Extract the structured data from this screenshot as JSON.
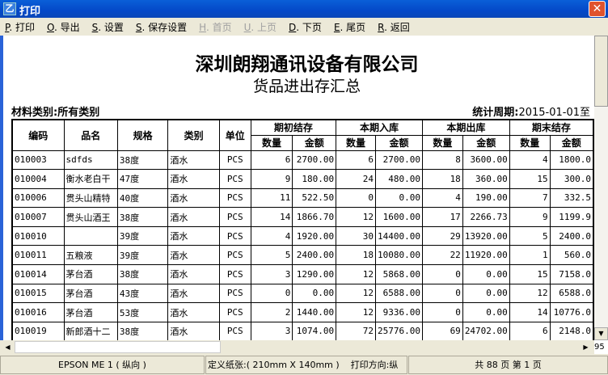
{
  "window": {
    "title": "打印",
    "close": "✕"
  },
  "menu": [
    {
      "key": "P",
      "label": ". 打印",
      "enabled": true
    },
    {
      "key": "O",
      "label": ". 导出",
      "enabled": true
    },
    {
      "key": "S",
      "label": ". 设置",
      "enabled": true
    },
    {
      "key": "S",
      "label": ". 保存设置",
      "enabled": true
    },
    {
      "key": "H",
      "label": ". 首页",
      "enabled": false
    },
    {
      "key": "U",
      "label": ". 上页",
      "enabled": false
    },
    {
      "key": "D",
      "label": ". 下页",
      "enabled": true
    },
    {
      "key": "E",
      "label": ". 尾页",
      "enabled": true
    },
    {
      "key": "R",
      "label": ". 返回",
      "enabled": true
    }
  ],
  "report": {
    "company": "深圳朗翔通讯设备有限公司",
    "title": "货品进出存汇总",
    "category": "材料类别:所有类别",
    "period_label": "统计周期:",
    "period_value": "2015-01-01至",
    "headers": {
      "code": "编码",
      "name": "品名",
      "spec": "规格",
      "type": "类别",
      "unit": "单位",
      "groups": [
        "期初结存",
        "本期入库",
        "本期出库",
        "期末结存"
      ],
      "qty": "数量",
      "amount": "金额"
    },
    "rows": [
      [
        "010003",
        "sdfds",
        "38度",
        "酒水",
        "PCS",
        "6",
        "2700.00",
        "6",
        "2700.00",
        "8",
        "3600.00",
        "4",
        "1800.0"
      ],
      [
        "010004",
        "衡水老白干",
        "47度",
        "酒水",
        "PCS",
        "9",
        "180.00",
        "24",
        "480.00",
        "18",
        "360.00",
        "15",
        "300.0"
      ],
      [
        "010006",
        "贯头山精特",
        "40度",
        "酒水",
        "PCS",
        "11",
        "522.50",
        "0",
        "0.00",
        "4",
        "190.00",
        "7",
        "332.5"
      ],
      [
        "010007",
        "贯头山酒王",
        "38度",
        "酒水",
        "PCS",
        "14",
        "1866.70",
        "12",
        "1600.00",
        "17",
        "2266.73",
        "9",
        "1199.9"
      ],
      [
        "010010",
        "",
        "39度",
        "酒水",
        "PCS",
        "4",
        "1920.00",
        "30",
        "14400.00",
        "29",
        "13920.00",
        "5",
        "2400.0"
      ],
      [
        "010011",
        "五粮液",
        "39度",
        "酒水",
        "PCS",
        "5",
        "2400.00",
        "18",
        "10080.00",
        "22",
        "11920.00",
        "1",
        "560.0"
      ],
      [
        "010014",
        "茅台酒",
        "38度",
        "酒水",
        "PCS",
        "3",
        "1290.00",
        "12",
        "5868.00",
        "0",
        "0.00",
        "15",
        "7158.0"
      ],
      [
        "010015",
        "茅台酒",
        "43度",
        "酒水",
        "PCS",
        "0",
        "0.00",
        "12",
        "6588.00",
        "0",
        "0.00",
        "12",
        "6588.0"
      ],
      [
        "010016",
        "茅台酒",
        "53度",
        "酒水",
        "PCS",
        "2",
        "1440.00",
        "12",
        "9336.00",
        "0",
        "0.00",
        "14",
        "10776.0"
      ],
      [
        "010019",
        "新郎酒十二",
        "38度",
        "酒水",
        "PCS",
        "3",
        "1074.00",
        "72",
        "25776.00",
        "69",
        "24702.00",
        "6",
        "2148.0"
      ]
    ]
  },
  "scroll": {
    "corner_text": "95"
  },
  "status": {
    "printer": "EPSON ME 1 ( 纵向 )",
    "paper": "定义纸张:( 210mm X 140mm )",
    "orientation": "打印方向:纵",
    "pages": "共 88 页 第 1 页"
  }
}
